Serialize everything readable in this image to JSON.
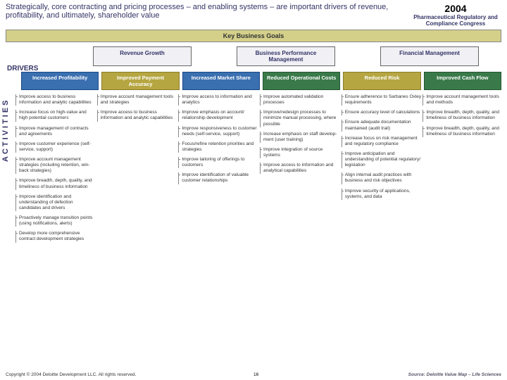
{
  "header": {
    "title": "Strategically, core contracting and pricing processes – and enabling systems – are important drivers of revenue, profitability, and ultimately, shareholder value",
    "year": "2004",
    "subtitle": "Pharmaceutical Regulatory and Compliance Congress"
  },
  "key_goals_label": "Key Business Goals",
  "drivers_label": "DRIVERS",
  "activities_label": "ACTIVITIES",
  "goals": [
    {
      "label": "Revenue Growth"
    },
    {
      "label": "Business Performance Management"
    },
    {
      "label": "Financial Management"
    }
  ],
  "drivers": [
    {
      "label": "Increased Profitability",
      "bg": "#3a6fb0",
      "border": "#1a4a85"
    },
    {
      "label": "Improved Payment Accuracy",
      "bg": "#b5a642",
      "border": "#8a7d2a"
    },
    {
      "label": "Increased Market Share",
      "bg": "#3a6fb0",
      "border": "#1a4a85"
    },
    {
      "label": "Reduced Operational Costs",
      "bg": "#3a7a4a",
      "border": "#245530"
    },
    {
      "label": "Reduced Risk",
      "bg": "#b5a642",
      "border": "#8a7d2a"
    },
    {
      "label": "Improved Cash Flow",
      "bg": "#3a7a4a",
      "border": "#245530"
    }
  ],
  "activities": [
    [
      "Improve access to business information and analytic capabilities",
      "Increase focus on high-value and high potential customers",
      "Improve management of contracts and agreements",
      "Improve customer experience (self-service, support)",
      "Improve account management strategies (including retention, win-back strategies)",
      "Improve breadth, depth, quality, and timeliness of business information",
      "Improve identification and understanding of defection candidates and drivers",
      "Proactively manage transition points (using notifications, alerts)",
      "Develop more comprehensive contract development strategies"
    ],
    [
      "Improve account management tools and strategies",
      "Improve access to business information and analytic capabilities"
    ],
    [
      "Improve access to information and analytics",
      "Improve emphasis on account/ relationship development",
      "Improve responsiveness to customer needs (self-service, support)",
      "Focus/refine retention priorities and strategies",
      "Improve tailoring of offerings to customers",
      "Improve identification of valuable customer relationships"
    ],
    [
      "Improve automated validation processes",
      "Improve/redesign processes to minimize manual processing, where possible",
      "Increase emphasis on staff develop- ment (user training)",
      "Improve integration of source systems",
      "Improve access to information and analytical capabilities"
    ],
    [
      "Ensure adherence to Sarbanes Oxley requirements",
      "Ensure accuracy level of calculations",
      "Ensure adequate documentation maintained (audit trail)",
      "Increase focus on risk management and regulatory compliance",
      "Improve anticipation and understanding of potential regulatory/ legislation",
      "Align internal audit practices with business and risk objectives",
      "Improve security of applications, systems, and data"
    ],
    [
      "Improve account management tools and methods",
      "Improve breadth, depth, quality, and timeliness of business information",
      "Improve breadth, depth, quality, and timeliness of business information"
    ]
  ],
  "footer": {
    "copyright": "Copyright © 2004 Deloitte Development LLC. All rights reserved.",
    "source": "Source: Deloitte Value Map – Life Sciences",
    "page": "16"
  }
}
